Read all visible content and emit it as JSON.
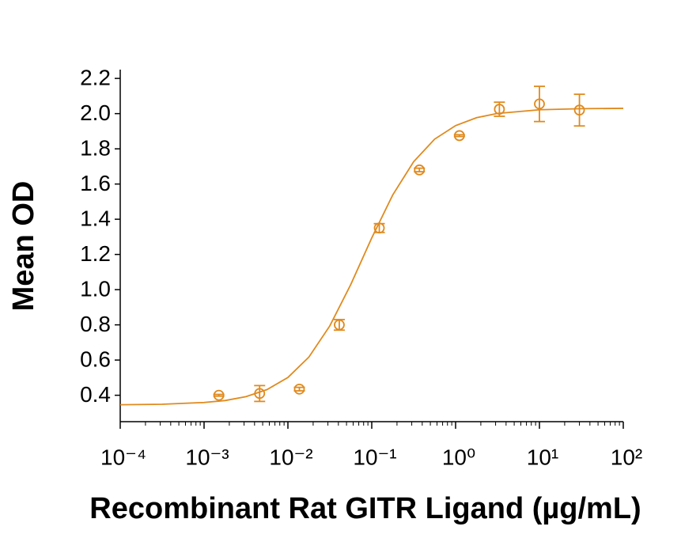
{
  "chart_data": {
    "type": "scatter",
    "x_label": "Recombinant Rat GITR Ligand (µg/mL)",
    "y_label": "Mean OD",
    "log_x": true,
    "color": "#e08a1e",
    "x": [
      0.0015,
      0.0046,
      0.0137,
      0.041,
      0.123,
      0.37,
      1.11,
      3.33,
      10,
      30
    ],
    "values": [
      0.4,
      0.41,
      0.435,
      0.8,
      1.35,
      1.68,
      1.875,
      2.025,
      2.055,
      2.02
    ],
    "errors": [
      0.005,
      0.045,
      0.01,
      0.03,
      0.025,
      0.01,
      0.005,
      0.04,
      0.1,
      0.09
    ],
    "curve": {
      "x": [
        0.0001,
        0.000316,
        0.001,
        0.00178,
        0.00316,
        0.00562,
        0.01,
        0.0178,
        0.0316,
        0.0562,
        0.1,
        0.178,
        0.316,
        0.562,
        1,
        1.78,
        3.16,
        10,
        31.6,
        100
      ],
      "values": [
        0.346,
        0.349,
        0.359,
        0.37,
        0.392,
        0.432,
        0.501,
        0.617,
        0.794,
        1.029,
        1.294,
        1.538,
        1.727,
        1.855,
        1.932,
        1.977,
        2.001,
        2.022,
        2.028,
        2.03
      ]
    },
    "xlim": [
      0.0001,
      100
    ],
    "xticks": [
      {
        "value": 0.0001,
        "label": "10⁻⁴"
      },
      {
        "value": 0.001,
        "label": "10⁻³"
      },
      {
        "value": 0.01,
        "label": "10⁻²"
      },
      {
        "value": 0.1,
        "label": "10⁻¹"
      },
      {
        "value": 1,
        "label": "10⁰"
      },
      {
        "value": 10,
        "label": "10¹"
      },
      {
        "value": 100,
        "label": "10²"
      }
    ],
    "ylim": [
      0.25,
      2.25
    ],
    "yticks": [
      0.4,
      0.6,
      0.8,
      {
        "value": 1,
        "label": "1.0"
      },
      1.2,
      1.4,
      1.6,
      1.8,
      {
        "value": 2,
        "label": "2.0"
      },
      2.2
    ]
  }
}
